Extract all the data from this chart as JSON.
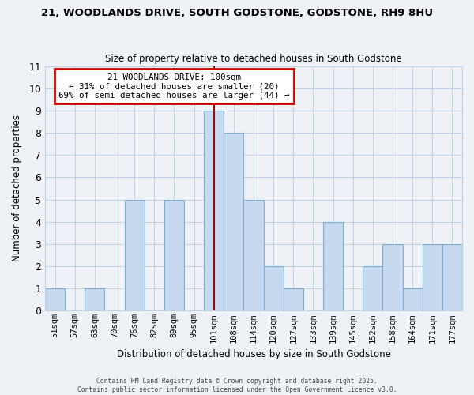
{
  "title": "21, WOODLANDS DRIVE, SOUTH GODSTONE, GODSTONE, RH9 8HU",
  "subtitle": "Size of property relative to detached houses in South Godstone",
  "xlabel": "Distribution of detached houses by size in South Godstone",
  "ylabel": "Number of detached properties",
  "categories": [
    "51sqm",
    "57sqm",
    "63sqm",
    "70sqm",
    "76sqm",
    "82sqm",
    "89sqm",
    "95sqm",
    "101sqm",
    "108sqm",
    "114sqm",
    "120sqm",
    "127sqm",
    "133sqm",
    "139sqm",
    "145sqm",
    "152sqm",
    "158sqm",
    "164sqm",
    "171sqm",
    "177sqm"
  ],
  "values": [
    1,
    0,
    1,
    0,
    5,
    0,
    5,
    0,
    9,
    8,
    5,
    2,
    1,
    0,
    4,
    0,
    2,
    3,
    1,
    3,
    3
  ],
  "bar_color": "#c6d9ee",
  "bar_edge_color": "#7aafd4",
  "highlight_index": 8,
  "highlight_line_color": "#aa0000",
  "ylim": [
    0,
    11
  ],
  "yticks": [
    0,
    1,
    2,
    3,
    4,
    5,
    6,
    7,
    8,
    9,
    10,
    11
  ],
  "annotation_title": "21 WOODLANDS DRIVE: 100sqm",
  "annotation_line1": "← 31% of detached houses are smaller (20)",
  "annotation_line2": "69% of semi-detached houses are larger (44) →",
  "annotation_box_edge": "#cc0000",
  "footer1": "Contains HM Land Registry data © Crown copyright and database right 2025.",
  "footer2": "Contains public sector information licensed under the Open Government Licence v3.0.",
  "bg_color": "#eef2f7",
  "grid_color": "#c0d0e0"
}
